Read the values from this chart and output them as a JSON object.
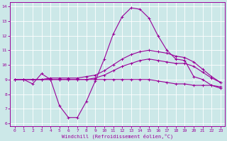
{
  "xlabel": "Windchill (Refroidissement éolien,°C)",
  "bg_color": "#cce8e8",
  "line_colors": [
    "#990099",
    "#990099",
    "#990099",
    "#990099"
  ],
  "grid_color": "#ffffff",
  "xlim": [
    -0.5,
    23.5
  ],
  "ylim": [
    5.8,
    14.3
  ],
  "yticks": [
    6,
    7,
    8,
    9,
    10,
    11,
    12,
    13,
    14
  ],
  "xticks": [
    0,
    1,
    2,
    3,
    4,
    5,
    6,
    7,
    8,
    9,
    10,
    11,
    12,
    13,
    14,
    15,
    16,
    17,
    18,
    19,
    20,
    21,
    22,
    23
  ],
  "series": [
    [
      9.0,
      9.0,
      8.7,
      9.4,
      9.0,
      7.2,
      6.4,
      6.4,
      7.5,
      8.9,
      10.4,
      12.1,
      13.3,
      13.9,
      13.8,
      13.2,
      12.0,
      11.0,
      10.4,
      10.3,
      9.2,
      9.0,
      8.6,
      8.4
    ],
    [
      9.0,
      9.0,
      9.0,
      9.0,
      9.0,
      9.0,
      9.0,
      9.0,
      9.0,
      9.0,
      9.0,
      9.0,
      9.0,
      9.0,
      9.0,
      9.0,
      8.9,
      8.8,
      8.7,
      8.7,
      8.6,
      8.6,
      8.6,
      8.5
    ],
    [
      9.0,
      9.0,
      9.0,
      9.0,
      9.0,
      9.0,
      9.0,
      9.0,
      9.0,
      9.1,
      9.3,
      9.6,
      9.9,
      10.1,
      10.3,
      10.4,
      10.3,
      10.2,
      10.1,
      10.1,
      9.9,
      9.5,
      9.1,
      8.8
    ],
    [
      9.0,
      9.0,
      9.0,
      9.0,
      9.1,
      9.1,
      9.1,
      9.1,
      9.2,
      9.3,
      9.6,
      10.0,
      10.4,
      10.7,
      10.9,
      11.0,
      10.9,
      10.8,
      10.6,
      10.5,
      10.2,
      9.7,
      9.2,
      8.8
    ]
  ]
}
